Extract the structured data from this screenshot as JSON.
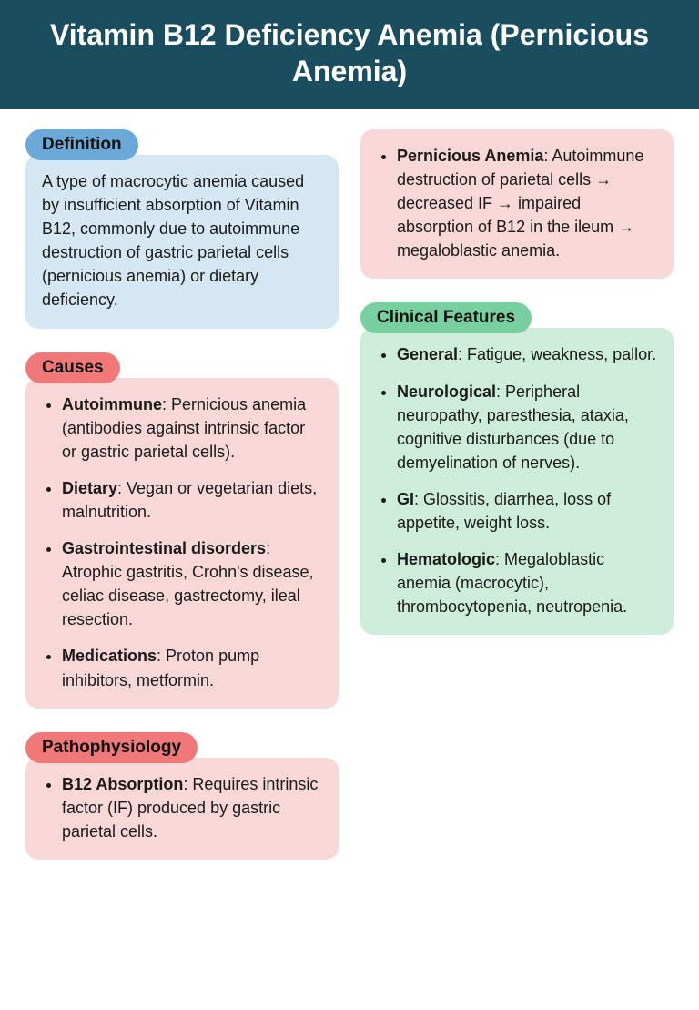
{
  "header": {
    "title": "Vitamin B12 Deficiency Anemia (Pernicious Anemia)"
  },
  "colors": {
    "header_bg": "#1a4d5e",
    "header_text": "#ffffff",
    "badge_blue": "#6aa8d8",
    "badge_red": "#f07878",
    "badge_green": "#78cfa0",
    "box_blue": "#d5e7f3",
    "box_pink": "#f8d7d7",
    "box_green": "#cdecd9",
    "text": "#1a1a1a"
  },
  "typography": {
    "header_size": 32,
    "badge_size": 19,
    "body_size": 18
  },
  "sections": {
    "definition": {
      "badge": "Definition",
      "text": "A type of macrocytic anemia caused by insufficient absorption of Vitamin B12, commonly due to autoimmune destruction of gastric parietal cells (pernicious anemia) or dietary deficiency."
    },
    "causes": {
      "badge": "Causes",
      "items": [
        {
          "label": "Autoimmune",
          "text": ": Pernicious anemia (antibodies against intrinsic factor or gastric parietal cells)."
        },
        {
          "label": "Dietary",
          "text": ": Vegan or vegetarian diets, malnutrition."
        },
        {
          "label": "Gastrointestinal disorders",
          "text": ": Atrophic gastritis, Crohn's disease, celiac disease, gastrectomy, ileal resection."
        },
        {
          "label": "Medications",
          "text": ": Proton pump inhibitors, metformin."
        }
      ]
    },
    "pathophysiology": {
      "badge": "Pathophysiology",
      "items": [
        {
          "label": "B12 Absorption",
          "text": ": Requires intrinsic factor (IF) produced by gastric parietal cells."
        }
      ]
    },
    "pernicious_box": {
      "items": [
        {
          "label": "Pernicious Anemia",
          "text": ": Autoimmune destruction of parietal cells → decreased IF → impaired absorption of B12 in the ileum → megaloblastic anemia."
        }
      ]
    },
    "clinical": {
      "badge": "Clinical Features",
      "items": [
        {
          "label": "General",
          "text": ": Fatigue, weakness, pallor."
        },
        {
          "label": "Neurological",
          "text": ": Peripheral neuropathy, paresthesia, ataxia, cognitive disturbances (due to demyelination of nerves)."
        },
        {
          "label": "GI",
          "text": ": Glossitis, diarrhea, loss of appetite, weight loss."
        },
        {
          "label": "Hematologic",
          "text": ": Megaloblastic anemia (macrocytic), thrombocytopenia, neutropenia."
        }
      ]
    }
  }
}
